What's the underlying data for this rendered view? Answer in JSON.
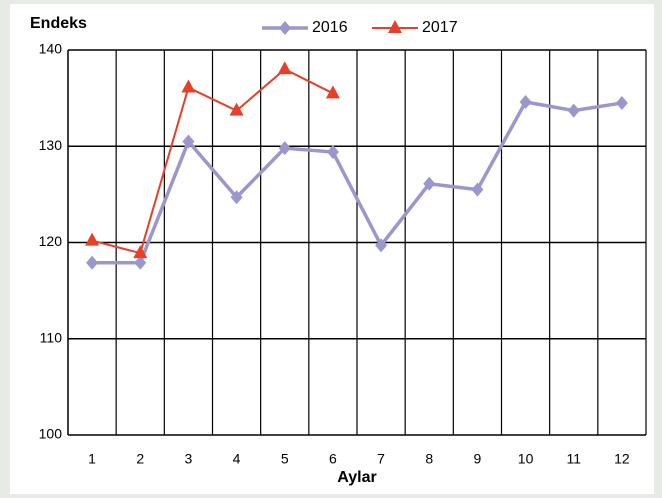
{
  "chart_data": {
    "type": "line",
    "title": "Endeks",
    "x_label": "Aylar",
    "categories": [
      "1",
      "2",
      "3",
      "4",
      "5",
      "6",
      "7",
      "8",
      "9",
      "10",
      "11",
      "12"
    ],
    "series": [
      {
        "name": "2016",
        "color": "#9b97cc",
        "marker": "diamond",
        "values": [
          117.9,
          117.9,
          130.5,
          124.7,
          129.8,
          129.4,
          119.7,
          126.1,
          125.5,
          134.6,
          133.7,
          134.5
        ]
      },
      {
        "name": "2017",
        "color": "#e5402a",
        "marker": "triangle",
        "values": [
          120.2,
          118.9,
          136.1,
          133.7,
          138.0,
          135.5,
          null,
          null,
          null,
          null,
          null,
          null
        ]
      }
    ],
    "ylim": [
      100,
      140
    ],
    "yticks": [
      100,
      110,
      120,
      130,
      140
    ],
    "grid": true
  }
}
